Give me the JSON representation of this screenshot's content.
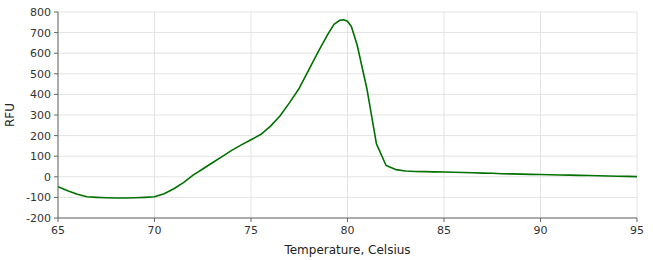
{
  "chart_data": {
    "type": "line",
    "xlabel": "Temperature, Celsius",
    "ylabel": "RFU",
    "x": [
      65.0,
      65.5,
      66.0,
      66.5,
      67.0,
      67.5,
      68.0,
      68.5,
      69.0,
      69.5,
      70.0,
      70.5,
      71.0,
      71.5,
      72.0,
      72.5,
      73.0,
      73.5,
      74.0,
      74.5,
      75.0,
      75.5,
      76.0,
      76.5,
      77.0,
      77.5,
      78.0,
      78.5,
      79.0,
      79.3,
      79.6,
      79.8,
      80.0,
      80.2,
      80.5,
      81.0,
      81.5,
      82.0,
      82.5,
      83.0,
      83.5,
      84.0,
      84.5,
      85.0,
      85.5,
      86.0,
      86.5,
      87.0,
      87.5,
      88.0,
      88.5,
      89.0,
      89.5,
      90.0,
      90.5,
      91.0,
      91.5,
      92.0,
      92.5,
      93.0,
      93.5,
      94.0,
      94.5,
      95.0
    ],
    "values": [
      -48,
      -68,
      -85,
      -97,
      -100,
      -102,
      -103,
      -103,
      -102,
      -100,
      -97,
      -82,
      -58,
      -28,
      8,
      38,
      68,
      98,
      128,
      155,
      180,
      205,
      245,
      295,
      360,
      430,
      520,
      610,
      695,
      740,
      760,
      762,
      755,
      730,
      640,
      430,
      160,
      55,
      35,
      28,
      26,
      25,
      24,
      23,
      22,
      21,
      20,
      18,
      17,
      15,
      14,
      13,
      12,
      11,
      10,
      9,
      8,
      7,
      6,
      5,
      4,
      3,
      2,
      1
    ],
    "color": "#007000",
    "xlim": [
      65,
      95
    ],
    "ylim": [
      -200,
      800
    ],
    "xticks": [
      65,
      70,
      75,
      80,
      85,
      90,
      95
    ],
    "yticks": [
      -200,
      -100,
      0,
      100,
      200,
      300,
      400,
      500,
      600,
      700,
      800
    ],
    "grid": true
  }
}
